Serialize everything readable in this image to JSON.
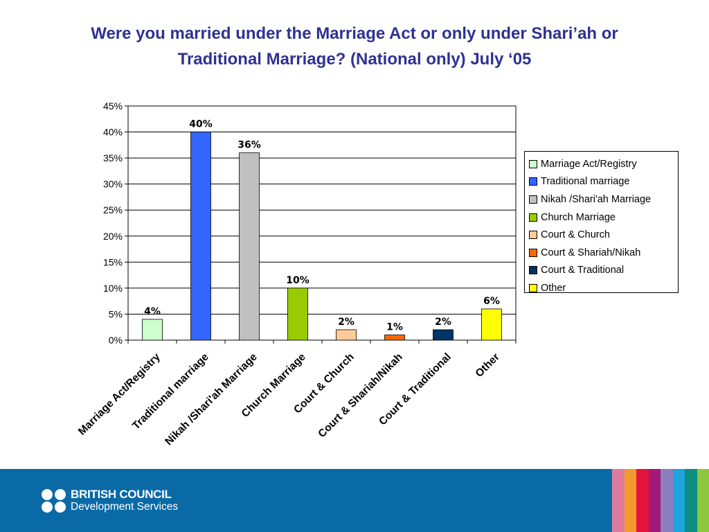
{
  "title": {
    "line1": "Were you married under the Marriage Act or only under Shari’ah or",
    "line2": "Traditional Marriage? (National only) July ‘05"
  },
  "chart_data": {
    "type": "bar",
    "categories": [
      "Marriage Act/Registry",
      "Traditional marriage",
      "Nikah /Shari'ah Marriage",
      "Church Marriage",
      "Court & Church",
      "Court & Shariah/Nikah",
      "Court & Traditional",
      "Other"
    ],
    "values": [
      4,
      40,
      36,
      10,
      2,
      1,
      2,
      6
    ],
    "data_labels": [
      "4%",
      "40%",
      "36%",
      "10%",
      "2%",
      "1%",
      "2%",
      "6%"
    ],
    "colors": [
      "#ccffcc",
      "#3366ff",
      "#c0c0c0",
      "#99cc00",
      "#ffcc99",
      "#ff6600",
      "#003366",
      "#ffff00"
    ],
    "ylim": [
      0,
      45
    ],
    "yticks": [
      0,
      5,
      10,
      15,
      20,
      25,
      30,
      35,
      40,
      45
    ],
    "ytick_labels": [
      "0%",
      "5%",
      "10%",
      "15%",
      "20%",
      "25%",
      "30%",
      "35%",
      "40%",
      "45%"
    ],
    "grid": true,
    "legend_position": "right",
    "xlabel": "",
    "ylabel": ""
  },
  "legend": {
    "items": [
      {
        "label": "Marriage Act/Registry",
        "color": "#ccffcc"
      },
      {
        "label": "Traditional marriage",
        "color": "#3366ff"
      },
      {
        "label": "Nikah /Shari'ah Marriage",
        "color": "#c0c0c0"
      },
      {
        "label": "Church Marriage",
        "color": "#99cc00"
      },
      {
        "label": "Court & Church",
        "color": "#ffcc99"
      },
      {
        "label": "Court & Shariah/Nikah",
        "color": "#ff6600"
      },
      {
        "label": "Court & Traditional",
        "color": "#003366"
      },
      {
        "label": "Other",
        "color": "#ffff00"
      }
    ]
  },
  "footer": {
    "logo_line1": "BRITISH COUNCIL",
    "logo_line2": "Development Services",
    "background": "#0a6aa6",
    "stripe_colors": [
      "#e07ba0",
      "#f39a2e",
      "#e4143c",
      "#a3197a",
      "#8c7fbf",
      "#1fa3dc",
      "#0b8e7e",
      "#8dc63f"
    ]
  }
}
